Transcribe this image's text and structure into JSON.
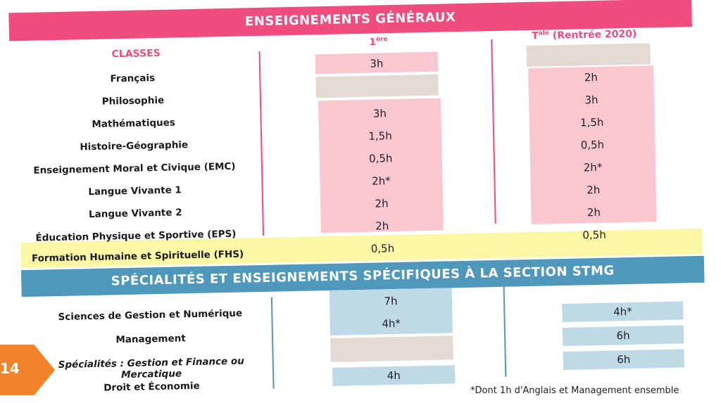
{
  "banners": {
    "general": "ENSEIGNEMENTS GÉNÉRAUX",
    "specialites": "SPÉCIALITÉS ET ENSEIGNEMENTS SPÉCIFIQUES À LA SECTION STMG"
  },
  "columns": {
    "classes": "CLASSES",
    "premiere_main": "1",
    "premiere_sup": "ère",
    "terminale_main": "T",
    "terminale_sup": "ale",
    "terminale_rest": " (Rentrée 2020)"
  },
  "general_rows": [
    {
      "label": "Français",
      "premiere": "3h",
      "terminale": ""
    },
    {
      "label": "Philosophie",
      "premiere": "",
      "terminale": "2h"
    },
    {
      "label": "Mathématiques",
      "premiere": "3h",
      "terminale": "3h"
    },
    {
      "label": "Histoire-Géographie",
      "premiere": "1,5h",
      "terminale": "1,5h"
    },
    {
      "label": "Enseignement Moral et Civique (EMC)",
      "premiere": "0,5h",
      "terminale": "0,5h"
    },
    {
      "label": "Langue Vivante 1",
      "premiere": "2h*",
      "terminale": "2h*"
    },
    {
      "label": "Langue Vivante 2",
      "premiere": "2h",
      "terminale": "2h"
    },
    {
      "label": "Éducation Physique et Sportive (EPS)",
      "premiere": "2h",
      "terminale": "2h"
    },
    {
      "label": "Formation Humaine et Spirituelle (FHS)",
      "premiere": "0,5h",
      "terminale": "0,5h"
    }
  ],
  "specialite_rows": [
    {
      "label": "Sciences de Gestion et Numérique",
      "premiere": "7h",
      "terminale": ""
    },
    {
      "label": "Management",
      "premiere": "4h*",
      "terminale": "4h*"
    },
    {
      "label": "Spécialités : Gestion et Finance ou Mercatique",
      "premiere": "",
      "terminale": "6h"
    },
    {
      "label": "Droit et Économie",
      "premiere": "4h",
      "terminale": "6h"
    }
  ],
  "page_number": "14",
  "footnote": "*Dont 1h d'Anglais et Management ensemble",
  "colors": {
    "pink": "#ee4d7e",
    "pink_light": "#f8c7d0",
    "beige": "#e3dbd3",
    "blue": "#4f98bb",
    "blue_light": "#bfdae6",
    "yellow": "#fbf7a5",
    "orange": "#f2832b"
  }
}
